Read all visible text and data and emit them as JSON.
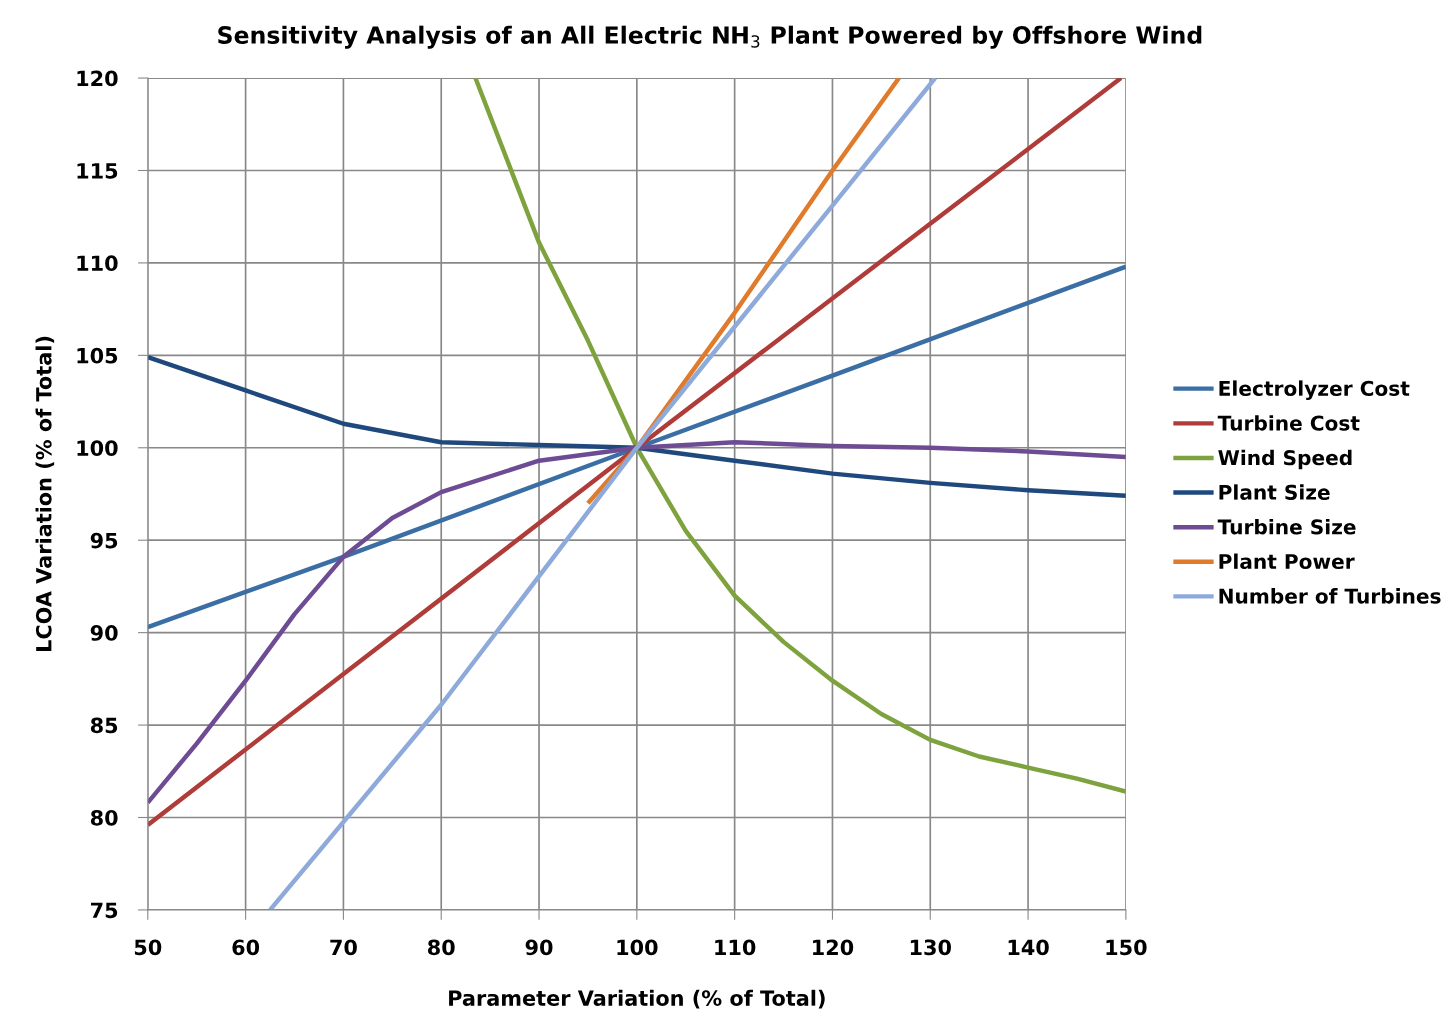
{
  "chart_data": {
    "type": "line",
    "title": "Sensitivity Analysis of an All Electric NH$_{3}$ Plant Powered by Offshore Wind",
    "xlabel": "Parameter Variation (% of Total)",
    "ylabel": "LCOA Variation (% of Total)",
    "xlim": [
      50,
      150
    ],
    "xticks": [
      50,
      60,
      70,
      80,
      90,
      100,
      110,
      120,
      130,
      140,
      150
    ],
    "ylim": [
      75,
      120
    ],
    "yticks": [
      75,
      80,
      85,
      90,
      95,
      100,
      105,
      110,
      115,
      120
    ],
    "grid": true,
    "legend": "right",
    "marker": "none",
    "line_style": "solid",
    "series": [
      {
        "name": "Electrolyzer Cost",
        "color": "#3a6ea5",
        "x": [
          50,
          70,
          100,
          120,
          150
        ],
        "values": [
          90.3,
          94.1,
          100,
          103.9,
          109.8
        ]
      },
      {
        "name": "Turbine Cost",
        "color": "#b03c3a",
        "x": [
          50,
          100,
          149.5
        ],
        "values": [
          79.6,
          100,
          120
        ]
      },
      {
        "name": "Wind Speed",
        "color": "#7ea33e",
        "x": [
          83.5,
          90,
          95,
          100,
          105,
          110,
          115,
          120,
          125,
          130,
          135,
          140,
          145,
          150
        ],
        "values": [
          120,
          111.1,
          105.8,
          100,
          95.5,
          92.0,
          89.5,
          87.4,
          85.6,
          84.2,
          83.3,
          82.7,
          82.1,
          81.4
        ]
      },
      {
        "name": "Plant Size",
        "color": "#1f497d",
        "x": [
          50,
          60,
          70,
          80,
          90,
          100,
          110,
          120,
          130,
          140,
          150
        ],
        "values": [
          104.9,
          103.1,
          101.3,
          100.3,
          100.15,
          100,
          99.3,
          98.6,
          98.1,
          97.7,
          97.4
        ]
      },
      {
        "name": "Turbine Size",
        "color": "#6d4c94",
        "x": [
          50,
          55,
          60,
          65,
          70,
          75,
          80,
          90,
          100,
          110,
          120,
          130,
          140,
          150
        ],
        "values": [
          80.8,
          84.0,
          87.4,
          91.0,
          94.1,
          96.2,
          97.6,
          99.3,
          100,
          100.3,
          100.1,
          100.0,
          99.8,
          99.5
        ]
      },
      {
        "name": "Plant Power",
        "color": "#e07b2c",
        "x": [
          95,
          100,
          110,
          120,
          126.8
        ],
        "values": [
          97.0,
          100,
          107.3,
          115.0,
          120
        ]
      },
      {
        "name": "Number of Turbines",
        "color": "#8eaadb",
        "x": [
          62.5,
          80,
          100,
          120,
          130.5
        ],
        "values": [
          75,
          86.1,
          100,
          113.1,
          120
        ]
      }
    ]
  }
}
